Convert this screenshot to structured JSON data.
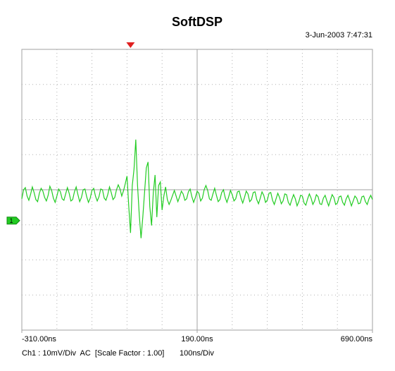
{
  "chart_data": {
    "type": "line",
    "title": "SoftDSP",
    "timestamp": "3-Jun-2003 7:47:31",
    "footer_scale": "Ch1 : 10mV/Div  AC  [Scale Factor : 1.00]",
    "footer_time": "100ns/Div",
    "channel_label": "1",
    "trigger": 0,
    "color": "#22cc22",
    "xlim": [
      -310,
      690
    ],
    "ylim": [
      -31.2,
      48.8
    ],
    "xticks": [
      {
        "value": -310,
        "label": "-310.00ns"
      },
      {
        "value": 190,
        "label": "190.00ns"
      },
      {
        "value": 690,
        "label": "690.00ns"
      }
    ],
    "x": [
      -310,
      -305,
      -300,
      -295,
      -290,
      -285,
      -280,
      -275,
      -270,
      -265,
      -260,
      -255,
      -250,
      -245,
      -240,
      -235,
      -230,
      -225,
      -220,
      -215,
      -210,
      -205,
      -200,
      -195,
      -190,
      -185,
      -180,
      -175,
      -170,
      -165,
      -160,
      -155,
      -150,
      -145,
      -140,
      -135,
      -130,
      -125,
      -120,
      -115,
      -110,
      -105,
      -100,
      -95,
      -90,
      -85,
      -80,
      -75,
      -70,
      -65,
      -60,
      -55,
      -50,
      -45,
      -40,
      -35,
      -30,
      -25,
      -20,
      -15,
      -10,
      -5,
      0,
      5,
      10,
      15,
      20,
      25,
      30,
      35,
      40,
      45,
      50,
      55,
      60,
      65,
      70,
      75,
      80,
      85,
      90,
      95,
      100,
      105,
      110,
      115,
      120,
      125,
      130,
      135,
      140,
      145,
      150,
      155,
      160,
      165,
      170,
      175,
      180,
      185,
      190,
      195,
      200,
      205,
      210,
      215,
      220,
      225,
      230,
      235,
      240,
      245,
      250,
      255,
      260,
      265,
      270,
      275,
      280,
      285,
      290,
      295,
      300,
      305,
      310,
      315,
      320,
      325,
      330,
      335,
      340,
      345,
      350,
      355,
      360,
      365,
      370,
      375,
      380,
      385,
      390,
      395,
      400,
      405,
      410,
      415,
      420,
      425,
      430,
      435,
      440,
      445,
      450,
      455,
      460,
      465,
      470,
      475,
      480,
      485,
      490,
      495,
      500,
      505,
      510,
      515,
      520,
      525,
      530,
      535,
      540,
      545,
      550,
      555,
      560,
      565,
      570,
      575,
      580,
      585,
      590,
      595,
      600,
      605,
      610,
      615,
      620,
      625,
      630,
      635,
      640,
      645,
      650,
      655,
      660,
      665,
      670,
      675,
      680,
      685,
      690
    ],
    "values": [
      6.2,
      8.8,
      9.4,
      7.0,
      5.8,
      7.5,
      9.6,
      8.0,
      6.0,
      5.4,
      7.8,
      9.2,
      8.4,
      6.6,
      5.6,
      7.2,
      9.8,
      8.6,
      6.4,
      5.2,
      7.0,
      9.0,
      8.2,
      6.2,
      5.8,
      7.6,
      9.4,
      7.8,
      5.6,
      6.0,
      8.2,
      9.6,
      7.4,
      5.4,
      6.6,
      8.8,
      9.0,
      6.8,
      5.2,
      6.4,
      8.6,
      9.2,
      7.0,
      5.6,
      6.8,
      9.0,
      8.8,
      6.4,
      5.8,
      7.4,
      9.6,
      8.0,
      6.0,
      6.6,
      8.8,
      10.2,
      9.0,
      7.0,
      8.5,
      10.5,
      12.7,
      4,
      -3.5,
      10,
      14.7,
      23.1,
      10,
      1.5,
      -5,
      1,
      8,
      15,
      16.7,
      4,
      -1.4,
      8,
      13,
      1,
      10,
      11,
      3,
      7,
      9.6,
      6,
      4.6,
      5.8,
      7.2,
      8.6,
      7.0,
      5.4,
      6.8,
      8.4,
      7.6,
      5.8,
      6.2,
      8.2,
      9.0,
      6.8,
      5.2,
      6.6,
      8.4,
      7.8,
      5.6,
      6.4,
      8.8,
      10.0,
      8.6,
      6.2,
      5.8,
      7.6,
      9.2,
      7.2,
      5.4,
      6.0,
      8.0,
      8.8,
      6.6,
      5.2,
      6.8,
      8.6,
      7.4,
      5.6,
      6.2,
      8.2,
      8.4,
      6.4,
      5.0,
      6.6,
      8.4,
      7.6,
      5.4,
      6.0,
      8.0,
      8.2,
      6.0,
      4.8,
      6.4,
      8.2,
      7.2,
      5.2,
      5.8,
      7.8,
      8.0,
      5.8,
      4.6,
      6.2,
      7.8,
      6.6,
      4.8,
      5.6,
      7.6,
      7.4,
      5.2,
      4.4,
      6.0,
      7.4,
      6.2,
      4.2,
      5.4,
      7.2,
      7.0,
      5.0,
      4.4,
      6.2,
      7.6,
      6.4,
      4.6,
      5.6,
      7.4,
      6.8,
      4.8,
      4.6,
      6.4,
      7.2,
      5.6,
      4.2,
      5.8,
      7.4,
      6.6,
      4.6,
      5.0,
      6.8,
      7.0,
      5.2,
      4.4,
      6.2,
      7.2,
      5.8,
      4.2,
      5.6,
      7.0,
      6.4,
      4.8,
      5.0,
      6.8,
      7.0,
      5.4,
      4.6,
      6.2,
      7.2,
      6.0
    ]
  }
}
